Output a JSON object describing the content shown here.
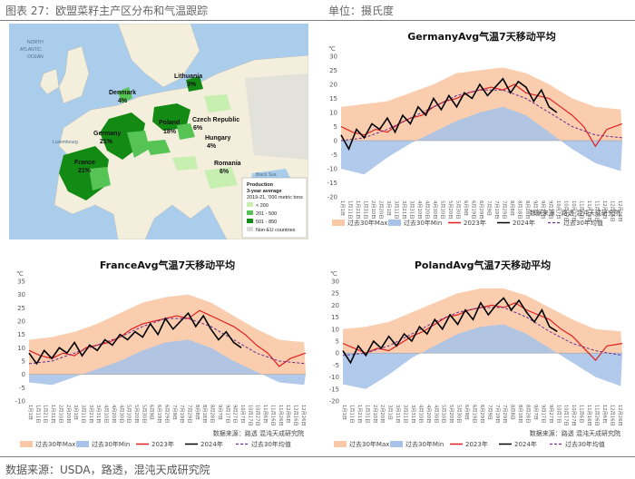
{
  "header": {
    "figure_title": "图表 27：欧盟菜籽主产区分布和气温跟踪",
    "unit": "单位：摄氏度"
  },
  "footer": {
    "source": "数据来源：USDA，路透，混沌天成研究院"
  },
  "map": {
    "sea_labels": [
      "NORTH",
      "ATLANTIC",
      "OCEAN",
      "Black Sea"
    ],
    "countries": [
      {
        "name": "Denmark",
        "share": "4%"
      },
      {
        "name": "Lithuania",
        "share": "3%"
      },
      {
        "name": "Poland",
        "share": "18%"
      },
      {
        "name": "Germany",
        "share": "21%"
      },
      {
        "name": "Czech Republic",
        "share": "6%"
      },
      {
        "name": "Hungary",
        "share": "4%"
      },
      {
        "name": "France",
        "share": "21%"
      },
      {
        "name": "Romania",
        "share": "6%"
      }
    ],
    "city_labels": [
      "Luxembourg"
    ],
    "legend": {
      "title": "Production",
      "subtitle": "3-year average",
      "note": "2019-21, '000 metric tons",
      "items": [
        {
          "label": "< 200",
          "color": "#c6efb0"
        },
        {
          "label": "201 - 500",
          "color": "#55c455"
        },
        {
          "label": "501 - 850",
          "color": "#138a13"
        },
        {
          "label": "Non-EU countries",
          "color": "#d9d9d9"
        }
      ]
    }
  },
  "colors": {
    "max_band": "#f9c8a6",
    "min_band": "#a9c3e8",
    "y2023": "#e02020",
    "y2024": "#000000",
    "avg": "#6a2c91"
  },
  "chart_data": [
    {
      "type": "line",
      "title": "GermanyAvg气温7天移动平均",
      "ylabel": "℃",
      "ylim": [
        -20,
        30
      ],
      "yticks": [
        -20,
        -15,
        -10,
        -5,
        0,
        5,
        10,
        15,
        20,
        25,
        30
      ],
      "x_tick_labels": [
        "1月1日",
        "1月11日",
        "1月21日",
        "1月31日",
        "2月10日",
        "2月20日",
        "3月1日",
        "3月11日",
        "3月21日",
        "3月31日",
        "4月10日",
        "4月20日",
        "4月30日",
        "5月10日",
        "5月20日",
        "5月30日",
        "6月9日",
        "6月19日",
        "6月29日",
        "7月9日",
        "7月19日",
        "7月29日",
        "8月8日",
        "8月18日",
        "8月28日",
        "9月7日",
        "9月17日",
        "9月27日",
        "10月7日",
        "10月17日",
        "10月27日",
        "11月6日",
        "11月16日",
        "11月26日",
        "12月6日",
        "12月16日",
        "12月26日"
      ],
      "series": [
        {
          "name": "过去30年Max",
          "style": "band",
          "day": [
            0,
            30,
            60,
            90,
            120,
            150,
            180,
            210,
            240,
            270,
            300,
            330,
            365
          ],
          "values": [
            12,
            13,
            14,
            17,
            20,
            24,
            25,
            26,
            24,
            20,
            15,
            12,
            11
          ]
        },
        {
          "name": "过去30年Min",
          "style": "band",
          "day": [
            0,
            30,
            60,
            90,
            120,
            150,
            180,
            210,
            240,
            270,
            300,
            330,
            365
          ],
          "values": [
            -10,
            -12,
            -6,
            -1,
            3,
            7,
            10,
            12,
            9,
            3,
            -3,
            -8,
            -11
          ]
        },
        {
          "name": "2023年",
          "day": [
            0,
            15,
            30,
            45,
            60,
            75,
            90,
            105,
            120,
            135,
            150,
            165,
            180,
            195,
            210,
            225,
            240,
            255,
            270,
            285,
            300,
            315,
            330,
            345,
            365
          ],
          "values": [
            5,
            3,
            2,
            4,
            3,
            6,
            8,
            9,
            12,
            14,
            15,
            17,
            18,
            19,
            18,
            20,
            17,
            16,
            15,
            12,
            9,
            5,
            -2,
            4,
            6
          ]
        },
        {
          "name": "2024年",
          "day": [
            0,
            10,
            20,
            30,
            40,
            50,
            60,
            70,
            80,
            90,
            100,
            110,
            120,
            130,
            140,
            150,
            160,
            170,
            180,
            190,
            200,
            210,
            220,
            230,
            240,
            250,
            260,
            270,
            280
          ],
          "values": [
            2,
            -3,
            4,
            1,
            6,
            4,
            8,
            3,
            9,
            6,
            12,
            9,
            15,
            11,
            16,
            12,
            17,
            15,
            20,
            16,
            19,
            22,
            17,
            21,
            19,
            14,
            18,
            12,
            10
          ]
        },
        {
          "name": "过去30年均值",
          "day": [
            0,
            30,
            60,
            90,
            120,
            150,
            180,
            210,
            240,
            270,
            300,
            330,
            365
          ],
          "values": [
            0,
            1,
            4,
            8,
            12,
            16,
            18,
            18,
            15,
            10,
            5,
            2,
            1
          ]
        }
      ],
      "source": "数据来源：路透   混沌天成研究院"
    },
    {
      "type": "line",
      "title": "FranceAvg气温7天移动平均",
      "ylabel": "℃",
      "ylim": [
        -10,
        35
      ],
      "yticks": [
        -10,
        -5,
        0,
        5,
        10,
        15,
        20,
        25,
        30,
        35
      ],
      "x_tick_labels": [
        "1月1日",
        "1月11日",
        "1月21日",
        "1月31日",
        "2月10日",
        "2月20日",
        "3月1日",
        "3月11日",
        "3月21日",
        "3月31日",
        "4月10日",
        "4月20日",
        "4月30日",
        "5月10日",
        "5月20日",
        "5月30日",
        "6月9日",
        "6月19日",
        "6月29日",
        "7月9日",
        "7月19日",
        "7月29日",
        "8月8日",
        "8月18日",
        "8月28日",
        "9月7日",
        "9月17日",
        "9月27日",
        "10月7日",
        "10月17日",
        "10月27日",
        "11月6日",
        "11月16日",
        "11月26日",
        "12月6日",
        "12月16日",
        "12月26日"
      ],
      "series": [
        {
          "name": "过去30年Max",
          "style": "band",
          "day": [
            0,
            30,
            60,
            90,
            120,
            150,
            180,
            210,
            240,
            270,
            300,
            330,
            365
          ],
          "values": [
            13,
            14,
            16,
            19,
            23,
            27,
            29,
            30,
            27,
            22,
            17,
            13,
            12
          ]
        },
        {
          "name": "过去30年Min",
          "style": "band",
          "day": [
            0,
            30,
            60,
            90,
            120,
            150,
            180,
            210,
            240,
            270,
            300,
            330,
            365
          ],
          "values": [
            -3,
            -4,
            -1,
            2,
            5,
            9,
            12,
            13,
            10,
            5,
            1,
            -3,
            -4
          ]
        },
        {
          "name": "2023年",
          "day": [
            0,
            15,
            30,
            45,
            60,
            75,
            90,
            105,
            120,
            135,
            150,
            165,
            180,
            195,
            210,
            225,
            240,
            255,
            270,
            285,
            300,
            315,
            330,
            345,
            365
          ],
          "values": [
            9,
            7,
            6,
            8,
            7,
            10,
            11,
            12,
            14,
            17,
            19,
            20,
            21,
            22,
            21,
            24,
            22,
            20,
            18,
            15,
            11,
            8,
            3,
            6,
            8
          ]
        },
        {
          "name": "2024年",
          "day": [
            0,
            10,
            20,
            30,
            40,
            50,
            60,
            70,
            80,
            90,
            100,
            110,
            120,
            130,
            140,
            150,
            160,
            170,
            180,
            190,
            200,
            210,
            220,
            230,
            240,
            250,
            260,
            270,
            280
          ],
          "values": [
            8,
            4,
            9,
            6,
            10,
            8,
            12,
            7,
            11,
            9,
            13,
            11,
            15,
            13,
            16,
            14,
            19,
            15,
            21,
            17,
            20,
            23,
            18,
            22,
            17,
            13,
            16,
            12,
            10
          ]
        },
        {
          "name": "过去30年均值",
          "day": [
            0,
            30,
            60,
            90,
            120,
            150,
            180,
            210,
            240,
            270,
            300,
            330,
            365
          ],
          "values": [
            4,
            5,
            8,
            11,
            14,
            18,
            21,
            21,
            18,
            13,
            8,
            5,
            4
          ]
        }
      ],
      "source": "数据来源：路透   混沌天成研究院"
    },
    {
      "type": "line",
      "title": "PolandAvg气温7天移动平均",
      "ylabel": "℃",
      "ylim": [
        -20,
        30
      ],
      "yticks": [
        -20,
        -15,
        -10,
        -5,
        0,
        5,
        10,
        15,
        20,
        25,
        30
      ],
      "x_tick_labels": [
        "1月1日",
        "1月11日",
        "1月21日",
        "1月31日",
        "2月10日",
        "2月20日",
        "3月1日",
        "3月11日",
        "3月21日",
        "3月31日",
        "4月10日",
        "4月20日",
        "4月30日",
        "5月10日",
        "5月20日",
        "5月30日",
        "6月9日",
        "6月19日",
        "6月29日",
        "7月9日",
        "7月19日",
        "7月29日",
        "8月8日",
        "8月18日",
        "8月28日",
        "9月7日",
        "9月17日",
        "9月27日",
        "10月7日",
        "10月17日",
        "10月27日",
        "11月6日",
        "11月16日",
        "11月26日",
        "12月6日",
        "12月16日",
        "12月26日"
      ],
      "series": [
        {
          "name": "过去30年Max",
          "style": "band",
          "day": [
            0,
            30,
            60,
            90,
            120,
            150,
            180,
            210,
            240,
            270,
            300,
            330,
            365
          ],
          "values": [
            10,
            11,
            13,
            17,
            21,
            25,
            27,
            27,
            24,
            19,
            14,
            10,
            9
          ]
        },
        {
          "name": "过去30年Min",
          "style": "band",
          "day": [
            0,
            30,
            60,
            90,
            120,
            150,
            180,
            210,
            240,
            270,
            300,
            330,
            365
          ],
          "values": [
            -13,
            -15,
            -9,
            -2,
            3,
            8,
            11,
            12,
            8,
            2,
            -4,
            -10,
            -14
          ]
        },
        {
          "name": "2023年",
          "day": [
            0,
            15,
            30,
            45,
            60,
            75,
            90,
            105,
            120,
            135,
            150,
            165,
            180,
            195,
            210,
            225,
            240,
            255,
            270,
            285,
            300,
            315,
            330,
            345,
            365
          ],
          "values": [
            4,
            2,
            0,
            2,
            1,
            4,
            7,
            9,
            12,
            15,
            16,
            18,
            19,
            20,
            19,
            21,
            18,
            16,
            14,
            10,
            7,
            2,
            -3,
            3,
            4
          ]
        },
        {
          "name": "2024年",
          "day": [
            0,
            10,
            20,
            30,
            40,
            50,
            60,
            70,
            80,
            90,
            100,
            110,
            120,
            130,
            140,
            150,
            160,
            170,
            180,
            190,
            200,
            210,
            220,
            230,
            240,
            250,
            260,
            270,
            280
          ],
          "values": [
            1,
            -4,
            3,
            -1,
            5,
            2,
            7,
            3,
            8,
            5,
            11,
            8,
            14,
            10,
            16,
            12,
            18,
            14,
            21,
            16,
            20,
            23,
            18,
            22,
            17,
            13,
            18,
            11,
            9
          ]
        },
        {
          "name": "过去30年均值",
          "day": [
            0,
            30,
            60,
            90,
            120,
            150,
            180,
            210,
            240,
            270,
            300,
            330,
            365
          ],
          "values": [
            -1,
            0,
            3,
            8,
            13,
            17,
            19,
            19,
            15,
            9,
            4,
            1,
            -1
          ]
        }
      ],
      "source": "数据来源：路透   混沌天成研究院"
    }
  ]
}
